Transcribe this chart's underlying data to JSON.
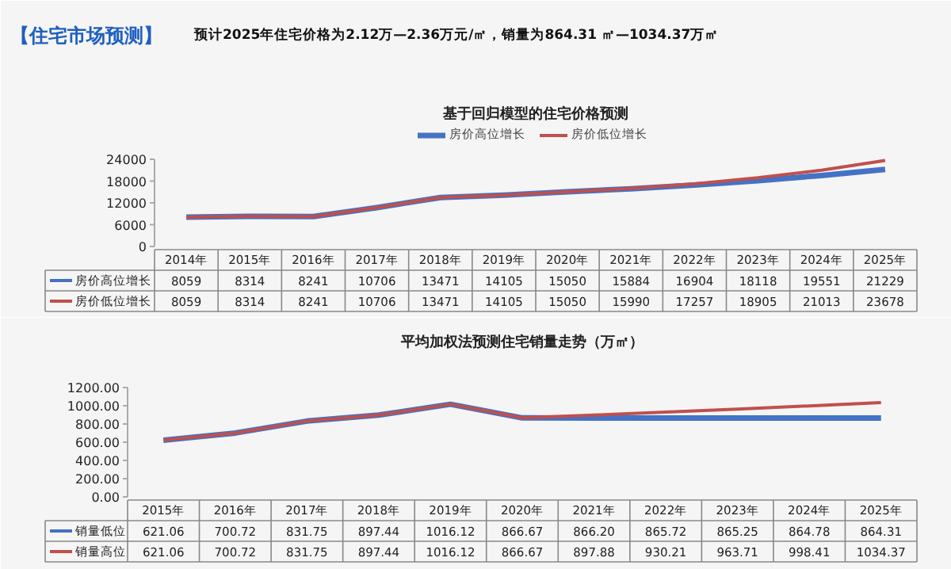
{
  "chart_data": [
    {
      "type": "line",
      "title": "基于回归模型的住宅价格预测",
      "annotations": [
        "【住宅市场预测】",
        "预计2025年住宅价格为2.12万—2.36万元/㎡，销量为864.31 ㎡—1034.37万㎡"
      ],
      "categories": [
        "2014年",
        "2015年",
        "2016年",
        "2017年",
        "2018年",
        "2019年",
        "2020年",
        "2021年",
        "2022年",
        "2023年",
        "2024年",
        "2025年"
      ],
      "ylim": [
        0,
        24000
      ],
      "yticks": [
        0,
        6000,
        12000,
        18000,
        24000
      ],
      "grid": false,
      "legend": "top",
      "data_labels": true,
      "marker": "none",
      "line_style": "solid",
      "series": [
        {
          "name": "房价高位增长",
          "color": "#4472c4",
          "values": [
            8059,
            8314,
            8241,
            10706,
            13471,
            14105,
            15050,
            15884,
            16904,
            18118,
            19551,
            21229
          ]
        },
        {
          "name": "房价低位增长",
          "color": "#c0504d",
          "values": [
            8059,
            8314,
            8241,
            10706,
            13471,
            14105,
            15050,
            15990,
            17257,
            18905,
            21013,
            23678
          ]
        }
      ]
    },
    {
      "type": "line",
      "title": "平均加权法预测住宅销量走势（万㎡）",
      "categories": [
        "2015年",
        "2016年",
        "2017年",
        "2018年",
        "2019年",
        "2020年",
        "2021年",
        "2022年",
        "2023年",
        "2024年",
        "2025年"
      ],
      "ylim": [
        0,
        1200
      ],
      "yticks": [
        {
          "value": 0,
          "label": "0.00"
        },
        {
          "value": 200,
          "label": "200.00"
        },
        {
          "value": 400,
          "label": "400.00"
        },
        {
          "value": 600,
          "label": "600.00"
        },
        {
          "value": 800,
          "label": "800.00"
        },
        {
          "value": 1000,
          "label": "1000.00"
        },
        {
          "value": 1200,
          "label": "1200.00"
        }
      ],
      "grid": false,
      "legend": "bottom left",
      "marker": "none",
      "line_style": "solid",
      "series": [
        {
          "name": "销量低位",
          "color": "#4472c4",
          "values": [
            621.06,
            700.72,
            831.75,
            897.44,
            1016.12,
            866.67,
            866.2,
            865.72,
            865.25,
            864.78,
            864.31
          ],
          "value_labels": [
            "621.06",
            "700.72",
            "831.75",
            "897.44",
            "1016.12",
            "866.67",
            "866.20",
            "865.72",
            "865.25",
            "864.78",
            "864.31"
          ]
        },
        {
          "name": "销量高位",
          "color": "#c0504d",
          "values": [
            621.06,
            700.72,
            831.75,
            897.44,
            1016.12,
            866.67,
            897.88,
            930.21,
            963.71,
            998.41,
            1034.37
          ],
          "value_labels": [
            "621.06",
            "700.72",
            "831.75",
            "897.44",
            "1016.12",
            "866.67",
            "897.88",
            "930.21",
            "963.71",
            "998.41",
            "1034.37"
          ]
        }
      ]
    }
  ]
}
